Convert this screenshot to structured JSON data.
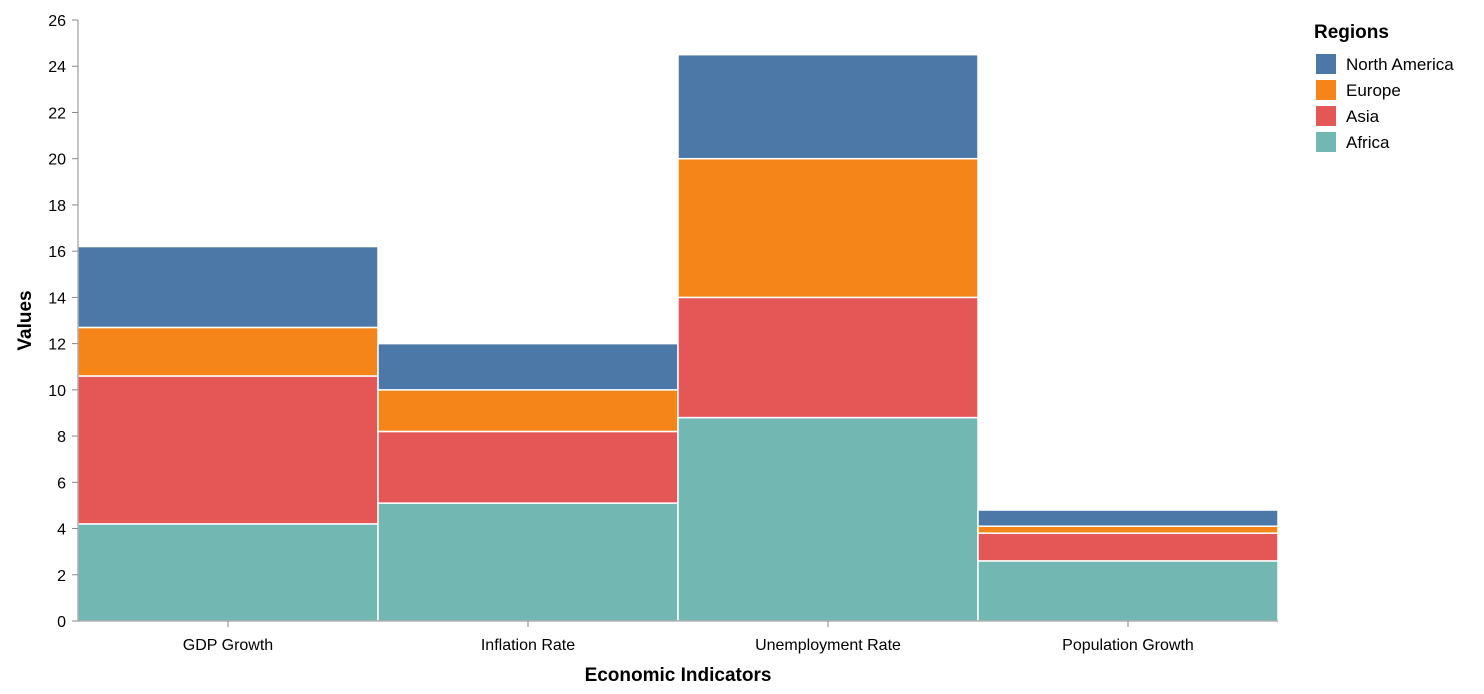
{
  "chart_data": {
    "type": "bar",
    "stacked": true,
    "title": "",
    "xlabel": "Economic Indicators",
    "ylabel": "Values",
    "ylim": [
      0,
      26
    ],
    "yticks": [
      0,
      2,
      4,
      6,
      8,
      10,
      12,
      14,
      16,
      18,
      20,
      22,
      24,
      26
    ],
    "categories": [
      "GDP Growth",
      "Inflation Rate",
      "Unemployment Rate",
      "Population Growth"
    ],
    "series": [
      {
        "name": "Africa",
        "color": "#72b7b2",
        "values": [
          4.2,
          5.1,
          8.8,
          2.6
        ]
      },
      {
        "name": "Asia",
        "color": "#e45756",
        "values": [
          6.4,
          3.1,
          5.2,
          1.2
        ]
      },
      {
        "name": "Europe",
        "color": "#f58518",
        "values": [
          2.1,
          1.8,
          6.0,
          0.3
        ]
      },
      {
        "name": "North America",
        "color": "#4c78a8",
        "values": [
          3.5,
          2.0,
          4.5,
          0.7
        ]
      }
    ],
    "legend": {
      "title": "Regions",
      "position": "top-right",
      "order": [
        "North America",
        "Europe",
        "Asia",
        "Africa"
      ]
    },
    "grid": false
  }
}
